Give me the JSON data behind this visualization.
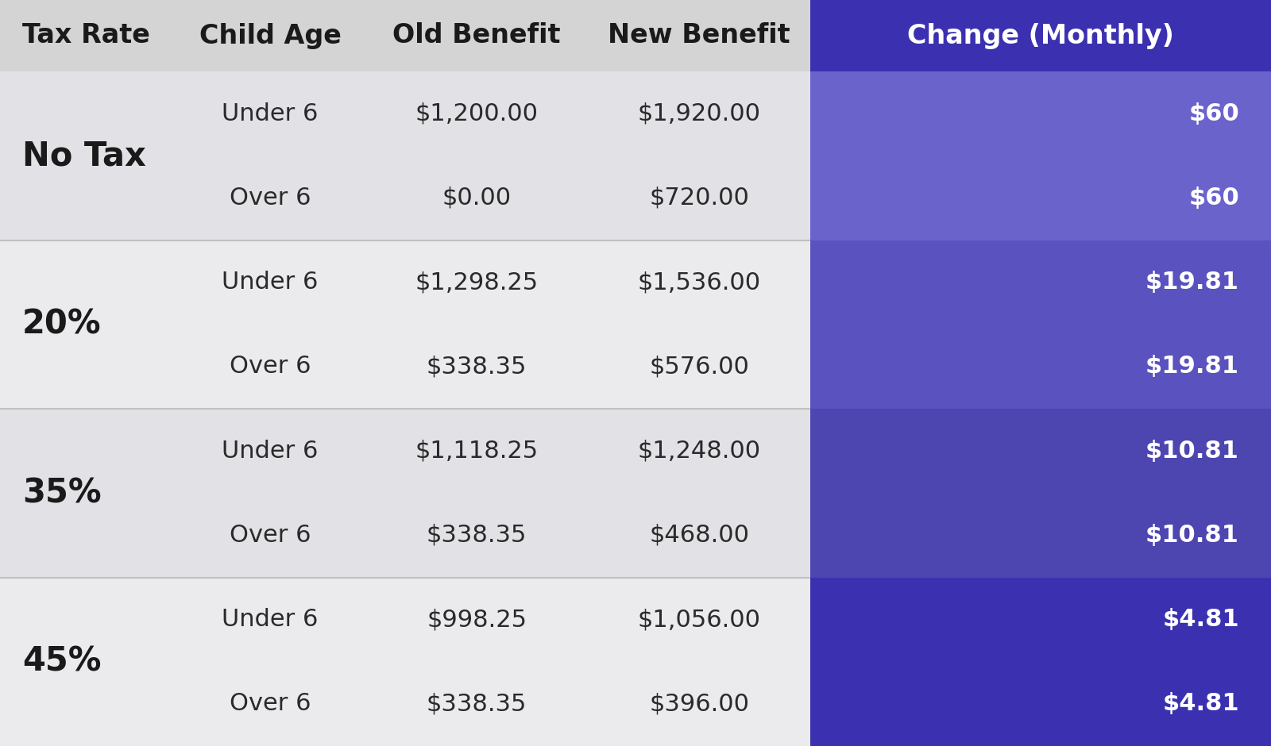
{
  "headers": [
    "Tax Rate",
    "Child Age",
    "Old Benefit",
    "New Benefit",
    "Change (Monthly)"
  ],
  "rows": [
    [
      "No Tax",
      "Under 6",
      "$1,200.00",
      "$1,920.00",
      "$60"
    ],
    [
      "No Tax",
      "Over 6",
      "$0.00",
      "$720.00",
      "$60"
    ],
    [
      "20%",
      "Under 6",
      "$1,298.25",
      "$1,536.00",
      "$19.81"
    ],
    [
      "20%",
      "Over 6",
      "$338.35",
      "$576.00",
      "$19.81"
    ],
    [
      "35%",
      "Under 6",
      "$1,118.25",
      "$1,248.00",
      "$10.81"
    ],
    [
      "35%",
      "Over 6",
      "$338.35",
      "$468.00",
      "$10.81"
    ],
    [
      "45%",
      "Under 6",
      "$998.25",
      "$1,056.00",
      "$4.81"
    ],
    [
      "45%",
      "Over 6",
      "$338.35",
      "$396.00",
      "$4.81"
    ]
  ],
  "tax_groups": [
    {
      "label": "No Tax",
      "rows": [
        0,
        1
      ]
    },
    {
      "label": "20%",
      "rows": [
        2,
        3
      ]
    },
    {
      "label": "35%",
      "rows": [
        4,
        5
      ]
    },
    {
      "label": "45%",
      "rows": [
        6,
        7
      ]
    }
  ],
  "header_bg": "#d4d4d4",
  "header_bg_right": "#3b31b0",
  "header_text_left": "#1a1a1a",
  "header_text_right": "#ffffff",
  "row_bg_odd": "#e2e2e6",
  "row_bg_even": "#ebebee",
  "change_bg_colors": [
    "#6b63cc",
    "#5a52be",
    "#4d45b0",
    "#3b31b0"
  ],
  "tax_label_color": "#1a1a1a",
  "cell_text_color": "#2a2a2a",
  "change_text_color": "#ffffff",
  "separator_color": "#c0c0c0",
  "fig_bg": "#e8e8ec",
  "header_fontsize": 24,
  "data_fontsize": 22,
  "tax_label_fontsize": 30,
  "change_fontsize": 22
}
